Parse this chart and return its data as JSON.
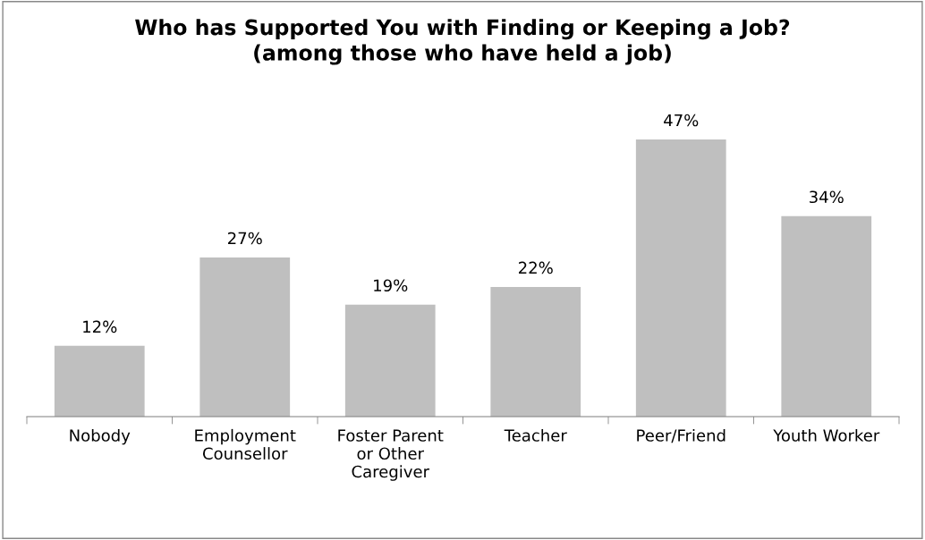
{
  "chart_data": {
    "type": "bar",
    "title": "Who has Supported You with Finding or Keeping a Job?\n(among those who have held a job)",
    "categories": [
      "Nobody",
      "Employment\nCounsellor",
      "Foster Parent\nor Other\nCaregiver",
      "Teacher",
      "Peer/Friend",
      "Youth Worker"
    ],
    "values": [
      12,
      27,
      19,
      22,
      47,
      34
    ],
    "value_labels": [
      "12%",
      "27%",
      "19%",
      "22%",
      "47%",
      "34%"
    ],
    "color": "#bfbfbf",
    "grid": false,
    "legend": false,
    "tick_labels": "x"
  }
}
